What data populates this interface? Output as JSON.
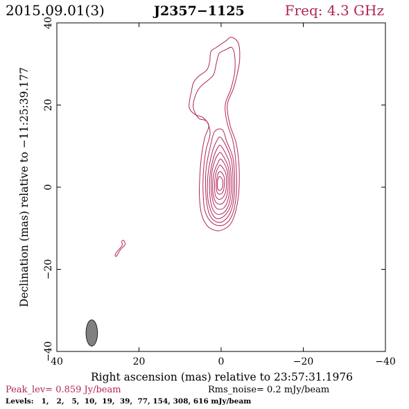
{
  "header": {
    "date": "2015.09.01(3)",
    "source": "J2357−1125",
    "freq": "Freq: 4.3 GHz"
  },
  "footer": {
    "peak": "Peak_lev=  0.859 Jy/beam",
    "noise": "Rms_noise=  0.2 mJy/beam",
    "levels": "Levels:   1,   2,   5,  10,  19,  39,  77, 154, 308, 616 mJy/beam"
  },
  "colors": {
    "contour": "#b0245a",
    "peak_text": "#b0245a",
    "freq_text": "#b0245a",
    "beam_fill": "#808080",
    "axes": "#000000"
  },
  "chart_data": {
    "type": "contour",
    "xlabel": "Right ascension (mas) relative to 23:57:31.1976",
    "ylabel": "Declination (mas) relative to −11:25:39.177",
    "xlim": [
      40,
      -40
    ],
    "ylim": [
      -40,
      40
    ],
    "x_ticks": [
      40,
      20,
      0,
      -20,
      -40
    ],
    "y_ticks": [
      40,
      20,
      0,
      -20,
      -40
    ],
    "x_tick_labels": [
      "40",
      "20",
      "0",
      "−20",
      "−40"
    ],
    "y_tick_labels": [
      "40",
      "20",
      "0",
      "−20",
      "−40"
    ],
    "levels_mJy_per_beam": [
      1,
      2,
      5,
      10,
      19,
      39,
      77,
      154,
      308,
      616
    ],
    "peak_Jy_per_beam": 0.859,
    "rms_noise_mJy_per_beam": 0.2,
    "beam": {
      "x": 31.5,
      "y": -35.5,
      "ra_halfwidth": 1.4,
      "dec_halfheight": 3.2
    },
    "contours": [
      {
        "level": 1,
        "points": [
          [
            -1,
            35.5
          ],
          [
            -2.5,
            36.5
          ],
          [
            -4.2,
            35
          ],
          [
            -4.5,
            31
          ],
          [
            -3.8,
            27
          ],
          [
            -3,
            24
          ],
          [
            -1.5,
            20
          ],
          [
            -2.2,
            15
          ],
          [
            -3.6,
            11
          ],
          [
            -4.3,
            6
          ],
          [
            -4.4,
            1
          ],
          [
            -4.1,
            -3
          ],
          [
            -3.2,
            -7
          ],
          [
            -2,
            -9.3
          ],
          [
            0,
            -10.5
          ],
          [
            1.6,
            -10.5
          ],
          [
            3.4,
            -9.4
          ],
          [
            4.8,
            -6.5
          ],
          [
            5.3,
            -2
          ],
          [
            5.2,
            2.5
          ],
          [
            4.8,
            7.5
          ],
          [
            4,
            12
          ],
          [
            3,
            15
          ],
          [
            4.5,
            17
          ],
          [
            6.2,
            17.6
          ],
          [
            7.8,
            19.5
          ],
          [
            7.2,
            23.5
          ],
          [
            6.7,
            25.5
          ],
          [
            5.5,
            27
          ],
          [
            3.5,
            28.5
          ],
          [
            2.8,
            30.5
          ],
          [
            2.5,
            33
          ],
          [
            1.2,
            34
          ]
        ]
      },
      {
        "level": 2,
        "points": [
          [
            -1.2,
            33.5
          ],
          [
            -2.6,
            34
          ],
          [
            -3.3,
            32
          ],
          [
            -3.3,
            28
          ],
          [
            -2.4,
            24
          ],
          [
            -1,
            20
          ],
          [
            -1.5,
            15.5
          ],
          [
            -2.8,
            11.5
          ],
          [
            -3.5,
            7
          ],
          [
            -3.8,
            1
          ],
          [
            -3.5,
            -3.5
          ],
          [
            -2.6,
            -7
          ],
          [
            -1,
            -9
          ],
          [
            1,
            -9.3
          ],
          [
            2.7,
            -8.2
          ],
          [
            4,
            -5.5
          ],
          [
            4.4,
            -1
          ],
          [
            4.3,
            4
          ],
          [
            3.7,
            9
          ],
          [
            2.7,
            13
          ],
          [
            3.5,
            16
          ],
          [
            5.5,
            16.8
          ],
          [
            6.8,
            19.5
          ],
          [
            6.2,
            22.5
          ],
          [
            5,
            24.5
          ],
          [
            3.2,
            26
          ],
          [
            1.8,
            27.5
          ],
          [
            1.2,
            30
          ],
          [
            0.5,
            32.5
          ]
        ]
      },
      {
        "level": 5,
        "points": [
          [
            -0.3,
            14
          ],
          [
            -1.4,
            11
          ],
          [
            -2.9,
            7
          ],
          [
            -3.3,
            1
          ],
          [
            -3,
            -3.5
          ],
          [
            -2.1,
            -6.5
          ],
          [
            -0.5,
            -8.3
          ],
          [
            1,
            -8.5
          ],
          [
            2.5,
            -7.3
          ],
          [
            3.4,
            -4.5
          ],
          [
            3.8,
            0
          ],
          [
            3.6,
            5
          ],
          [
            2.6,
            10
          ],
          [
            1.6,
            13.5
          ]
        ]
      },
      {
        "level": 10,
        "points": [
          [
            0,
            12
          ],
          [
            -2.4,
            7
          ],
          [
            -2.9,
            1
          ],
          [
            -2.6,
            -3.5
          ],
          [
            -1.6,
            -6
          ],
          [
            0,
            -7.5
          ],
          [
            1.4,
            -7.5
          ],
          [
            2.6,
            -5.5
          ],
          [
            3.3,
            -2
          ],
          [
            3.2,
            3
          ],
          [
            2.3,
            8
          ],
          [
            1.2,
            11
          ]
        ]
      },
      {
        "level": 19,
        "points": [
          [
            0,
            10
          ],
          [
            -2,
            6
          ],
          [
            -2.5,
            1
          ],
          [
            -2.2,
            -3
          ],
          [
            -1.2,
            -5.6
          ],
          [
            0.2,
            -6.6
          ],
          [
            1.5,
            -6.2
          ],
          [
            2.4,
            -4.3
          ],
          [
            2.8,
            -1
          ],
          [
            2.7,
            3
          ],
          [
            1.9,
            7
          ],
          [
            0.9,
            9.5
          ]
        ]
      },
      {
        "level": 39,
        "points": [
          [
            0,
            8.3
          ],
          [
            -1.7,
            5
          ],
          [
            -2.1,
            1
          ],
          [
            -1.8,
            -2.6
          ],
          [
            -0.8,
            -4.9
          ],
          [
            0.5,
            -5.4
          ],
          [
            1.5,
            -4.7
          ],
          [
            2.2,
            -2.5
          ],
          [
            2.4,
            0.7
          ],
          [
            2.2,
            4
          ],
          [
            1.4,
            6.8
          ],
          [
            0.7,
            8
          ]
        ]
      },
      {
        "level": 77,
        "points": [
          [
            0,
            6.8
          ],
          [
            -1.4,
            4.3
          ],
          [
            -1.7,
            1
          ],
          [
            -1.4,
            -2
          ],
          [
            -0.5,
            -3.8
          ],
          [
            0.6,
            -4.1
          ],
          [
            1.5,
            -3.3
          ],
          [
            2,
            -1.2
          ],
          [
            2,
            1.7
          ],
          [
            1.6,
            4
          ],
          [
            0.8,
            5.9
          ]
        ]
      },
      {
        "level": 154,
        "points": [
          [
            0.1,
            5.3
          ],
          [
            -1.1,
            3.5
          ],
          [
            -1.3,
            0.9
          ],
          [
            -1,
            -1.5
          ],
          [
            -0.2,
            -2.7
          ],
          [
            0.7,
            -2.9
          ],
          [
            1.4,
            -2
          ],
          [
            1.6,
            0
          ],
          [
            1.5,
            2.2
          ],
          [
            1.1,
            4
          ],
          [
            0.6,
            5
          ]
        ]
      },
      {
        "level": 308,
        "points": [
          [
            0.2,
            3.8
          ],
          [
            -0.7,
            2.6
          ],
          [
            -0.8,
            0.8
          ],
          [
            -0.5,
            -1
          ],
          [
            0.2,
            -1.7
          ],
          [
            0.9,
            -1.4
          ],
          [
            1.2,
            0
          ],
          [
            1.1,
            1.8
          ],
          [
            0.8,
            3.2
          ]
        ]
      },
      {
        "level": 616,
        "points": [
          [
            0.3,
            2.6
          ],
          [
            -0.3,
            1.8
          ],
          [
            -0.4,
            0.6
          ],
          [
            -0.1,
            -0.5
          ],
          [
            0.5,
            -0.8
          ],
          [
            0.9,
            -0.1
          ],
          [
            0.9,
            1.2
          ],
          [
            0.7,
            2.2
          ]
        ]
      },
      {
        "level": 1,
        "points": [
          [
            25.8,
            -16.5
          ],
          [
            25.2,
            -15.5
          ],
          [
            24.1,
            -14.2
          ],
          [
            24.2,
            -13.2
          ],
          [
            23.7,
            -13
          ],
          [
            23.4,
            -14
          ],
          [
            24.5,
            -15.2
          ],
          [
            25.5,
            -16.8
          ]
        ]
      }
    ]
  }
}
